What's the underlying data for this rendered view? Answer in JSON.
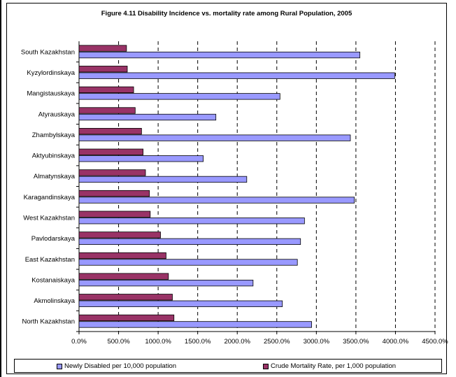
{
  "chart_data": {
    "type": "bar",
    "orientation": "horizontal",
    "title": "Figure 4.11 Disability Incidence vs.  mortality rate among Rural  Population, 2005",
    "categories": [
      "South Kazakhstan",
      "Kyzylordinskaya",
      "Mangistauskaya",
      "Atyrauskaya",
      "Zhambylskaya",
      "Aktyubinskaya",
      "Almatynskaya",
      "Karagandinskaya",
      "West Kazakhstan",
      "Pavlodarskaya",
      "East Kazakhstan",
      "Kostanaiskaya",
      "Akmolinskaya",
      "North Kazakhstan"
    ],
    "series": [
      {
        "name": "Crude Mortality Rate, per 1,000 population",
        "color": "#993366",
        "values": [
          600,
          610,
          690,
          710,
          790,
          810,
          840,
          890,
          900,
          1030,
          1100,
          1130,
          1180,
          1200
        ]
      },
      {
        "name": "Newly Disabled per 10,000 population",
        "color": "#9999ff",
        "values": [
          3550,
          3990,
          2540,
          1730,
          3430,
          1570,
          2120,
          3480,
          2850,
          2800,
          2760,
          2200,
          2570,
          2940
        ]
      }
    ],
    "xlim": [
      0,
      4500
    ],
    "xticks": [
      "0.0%",
      "500.0%",
      "1000.0%",
      "1500.0%",
      "2000.0%",
      "2500.0%",
      "3000.0%",
      "3500.0%",
      "4000.0%",
      "4500.0%"
    ],
    "xlabel": "",
    "ylabel": "",
    "grid": "vertical dashed",
    "legend": "bottom"
  }
}
